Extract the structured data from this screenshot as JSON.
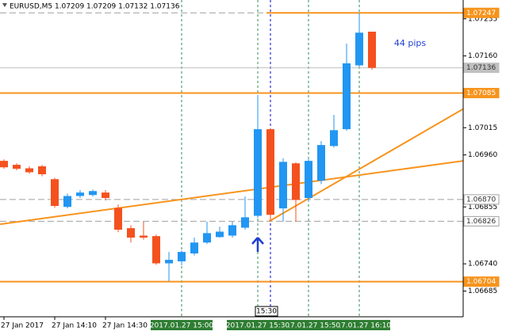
{
  "chart_data": {
    "type": "candlestick",
    "title": "EURUSD,M5  1.07209 1.07209 1.07132 1.07136",
    "categories": [
      "27 Jan 2017",
      null,
      null,
      null,
      "27 Jan 14:10",
      null,
      null,
      null,
      "27 Jan 14:30",
      null,
      null,
      null,
      null,
      null,
      "2017.01.27 15:00",
      null,
      null,
      null,
      null,
      null,
      "2017.01.27 15:30",
      null,
      null,
      null,
      "2017.01.27 15:50",
      null,
      null,
      null,
      "2017.01.27 16:10",
      null
    ],
    "highlighted_categories": [
      14,
      20,
      24,
      28
    ],
    "highlight_color": "#2e7d32",
    "open": [
      1.06948,
      1.0694,
      1.06933,
      1.06937,
      1.06911,
      1.06855,
      1.06877,
      1.06879,
      1.06884,
      1.06853,
      1.06812,
      1.06797,
      1.06796,
      1.06741,
      1.06745,
      1.06761,
      1.06783,
      1.06794,
      1.06797,
      1.06813,
      1.06837,
      1.07012,
      1.06852,
      1.06943,
      1.06873,
      1.06908,
      1.06978,
      1.07012,
      1.07141,
      1.07209
    ],
    "high": [
      1.06951,
      1.06943,
      1.06937,
      1.0694,
      1.06914,
      1.06882,
      1.06889,
      1.0689,
      1.06889,
      1.0686,
      1.06818,
      1.06825,
      1.06799,
      1.06764,
      1.06767,
      1.06793,
      1.06825,
      1.06815,
      1.06825,
      1.06876,
      1.07081,
      1.07013,
      1.06953,
      1.06945,
      1.06953,
      1.06988,
      1.07041,
      1.07185,
      1.07247,
      1.07209
    ],
    "low": [
      1.06932,
      1.06929,
      1.06922,
      1.06917,
      1.06853,
      1.06852,
      1.06873,
      1.06876,
      1.06868,
      1.06804,
      1.06783,
      1.06789,
      1.06738,
      1.06705,
      1.06737,
      1.06757,
      1.0678,
      1.06793,
      1.06793,
      1.06809,
      1.06833,
      1.06826,
      1.06825,
      1.06825,
      1.06865,
      1.06901,
      1.06975,
      1.07009,
      1.07138,
      1.07132
    ],
    "close": [
      1.06935,
      1.06932,
      1.06925,
      1.06921,
      1.06857,
      1.06877,
      1.06884,
      1.06887,
      1.06873,
      1.06809,
      1.06793,
      1.06793,
      1.06741,
      1.06748,
      1.06764,
      1.06783,
      1.06802,
      1.06805,
      1.06818,
      1.06834,
      1.07012,
      1.06839,
      1.06946,
      1.06869,
      1.06948,
      1.0698,
      1.0701,
      1.07145,
      1.07207,
      1.07136
    ],
    "up_color": "#2196f3",
    "down_color": "#f4511e",
    "ylim": [
      1.06633,
      1.07273
    ],
    "yticks": [
      1.07235,
      {
        "value": 1.0716,
        "label": "1.07160"
      },
      1.07085,
      1.07015,
      {
        "value": 1.0696,
        "label": "1.06960"
      },
      1.06855,
      {
        "value": 1.0674,
        "label": "1.06740"
      },
      1.06685
    ],
    "price_levels": [
      {
        "value": 1.07247,
        "color": "#f7941d",
        "dashed": false,
        "start": 21,
        "label_bg": "#f7941d"
      },
      {
        "value": 1.07136,
        "color": "#c0c0c0",
        "dashed": false,
        "label_bg": "#c0c0c0"
      },
      {
        "value": 1.07085,
        "color": "#f7941d",
        "dashed": false,
        "label_bg": "#f7941d"
      },
      {
        "value": 1.0687,
        "label": "1.06870",
        "color": "#a0a0a0",
        "dashed": true,
        "label_bg": "#ffffff"
      },
      {
        "value": 1.06826,
        "color": "#a0a0a0",
        "dashed": true,
        "label_bg": "#ffffff"
      },
      {
        "value": 1.06704,
        "color": "#f7941d",
        "dashed": false,
        "label_bg": "#f7941d"
      }
    ],
    "vlines": [
      {
        "x": 14,
        "color": "#2e8b57"
      },
      {
        "x": 20,
        "color": "#2e8b57"
      },
      {
        "x": 21,
        "color": "#0000cd"
      },
      {
        "x": 24,
        "color": "#2e8b57"
      },
      {
        "x": 28,
        "color": "#2e8b57"
      }
    ],
    "trendlines": [
      {
        "x": [
          -0.3,
          36.2
        ],
        "y": [
          1.0682,
          1.06948
        ],
        "color": "#f7941d"
      },
      {
        "x": [
          20.9,
          36.2
        ],
        "y": [
          1.06826,
          1.07053
        ],
        "color": "#f7941d"
      }
    ],
    "arrow": {
      "x": 20,
      "y": 1.06793,
      "color": "#1f3fd1"
    },
    "annotation": {
      "text": "44 pips",
      "x": 32,
      "y": 1.07185,
      "color": "#1f3fd1"
    },
    "cursor_label": {
      "text": "15:30",
      "x": 21
    }
  }
}
